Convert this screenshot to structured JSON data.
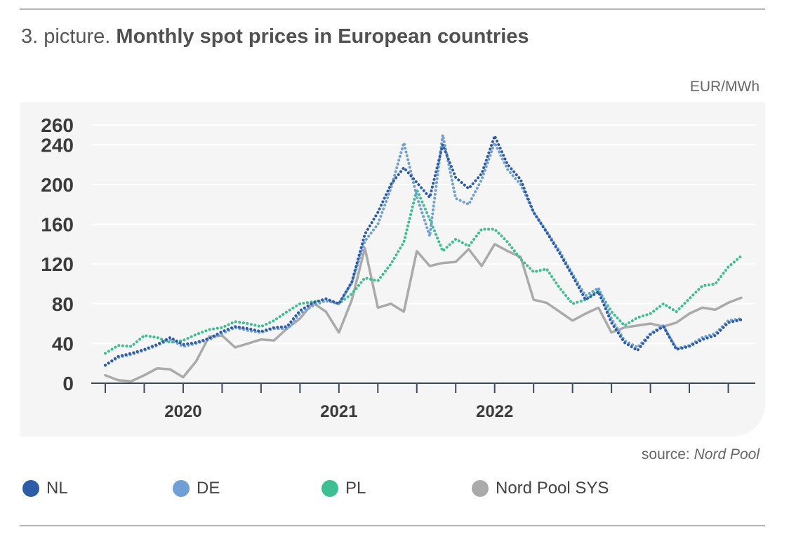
{
  "title_prefix": "3. picture. ",
  "title_main": "Monthly spot prices in European countries",
  "unit": "EUR/MWh",
  "source_prefix": "source: ",
  "source_name": "Nord Pool",
  "chart_data": {
    "type": "line",
    "title": "Monthly spot prices in European countries",
    "ylabel": "EUR/MWh",
    "ylim": [
      0,
      260
    ],
    "yticks": [
      0,
      40,
      80,
      120,
      160,
      200,
      240,
      260
    ],
    "x": [
      "2019-07",
      "2019-08",
      "2019-09",
      "2019-10",
      "2019-11",
      "2019-12",
      "2020-01",
      "2020-02",
      "2020-03",
      "2020-04",
      "2020-05",
      "2020-06",
      "2020-07",
      "2020-08",
      "2020-09",
      "2020-10",
      "2020-11",
      "2020-12",
      "2021-01",
      "2021-02",
      "2021-03",
      "2021-04",
      "2021-05",
      "2021-06",
      "2021-07",
      "2021-08",
      "2021-09",
      "2021-10",
      "2021-11",
      "2021-12",
      "2022-01",
      "2022-02",
      "2022-03",
      "2022-04",
      "2022-05",
      "2022-06",
      "2022-07",
      "2022-08",
      "2022-09",
      "2022-10",
      "2022-11",
      "2022-12",
      "2023-01",
      "2023-02",
      "2023-03",
      "2023-04",
      "2023-05",
      "2023-06",
      "2023-07",
      "2023-08"
    ],
    "year_labels": [
      {
        "label": "2020",
        "x": "2020-01"
      },
      {
        "label": "2021",
        "x": "2021-01"
      },
      {
        "label": "2022",
        "x": "2022-01"
      }
    ],
    "series": [
      {
        "name": "NL",
        "color": "#2e5ba5",
        "style": "dotted",
        "values": [
          18,
          27,
          30,
          34,
          39,
          46,
          39,
          41,
          45,
          52,
          57,
          55,
          52,
          56,
          57,
          73,
          81,
          85,
          80,
          102,
          150,
          172,
          200,
          217,
          202,
          187,
          240,
          207,
          196,
          211,
          249,
          220,
          205,
          172,
          152,
          131,
          108,
          84,
          92,
          61,
          41,
          33,
          49,
          57,
          34,
          37,
          44,
          48,
          61,
          64
        ]
      },
      {
        "name": "DE",
        "color": "#6f9fd4",
        "style": "dotted",
        "values": [
          18,
          26,
          29,
          33,
          38,
          44,
          37,
          40,
          44,
          50,
          56,
          53,
          51,
          55,
          55,
          70,
          78,
          83,
          80,
          101,
          143,
          160,
          196,
          242,
          188,
          148,
          250,
          186,
          180,
          205,
          242,
          215,
          200,
          172,
          153,
          133,
          110,
          88,
          96,
          65,
          43,
          36,
          50,
          58,
          35,
          38,
          46,
          50,
          63,
          65
        ]
      },
      {
        "name": "PL",
        "color": "#3ebe93",
        "style": "dotted",
        "values": [
          30,
          38,
          37,
          48,
          46,
          41,
          43,
          49,
          54,
          56,
          62,
          60,
          57,
          63,
          72,
          80,
          82,
          83,
          80,
          90,
          106,
          103,
          120,
          142,
          195,
          165,
          133,
          145,
          138,
          155,
          155,
          142,
          125,
          112,
          115,
          96,
          80,
          84,
          94,
          72,
          58,
          66,
          70,
          80,
          72,
          85,
          98,
          100,
          117,
          128
        ]
      },
      {
        "name": "Nord Pool SYS",
        "color": "#aaaaaa",
        "style": "solid",
        "values": [
          8,
          3,
          2,
          8,
          15,
          14,
          6,
          22,
          47,
          48,
          36,
          40,
          44,
          43,
          55,
          65,
          81,
          72,
          51,
          84,
          136,
          76,
          80,
          72,
          133,
          118,
          121,
          122,
          135,
          118,
          140,
          133,
          127,
          84,
          81,
          72,
          63,
          70,
          76,
          51,
          56,
          58,
          60,
          57,
          61,
          70,
          76,
          74,
          81,
          86
        ]
      }
    ]
  }
}
